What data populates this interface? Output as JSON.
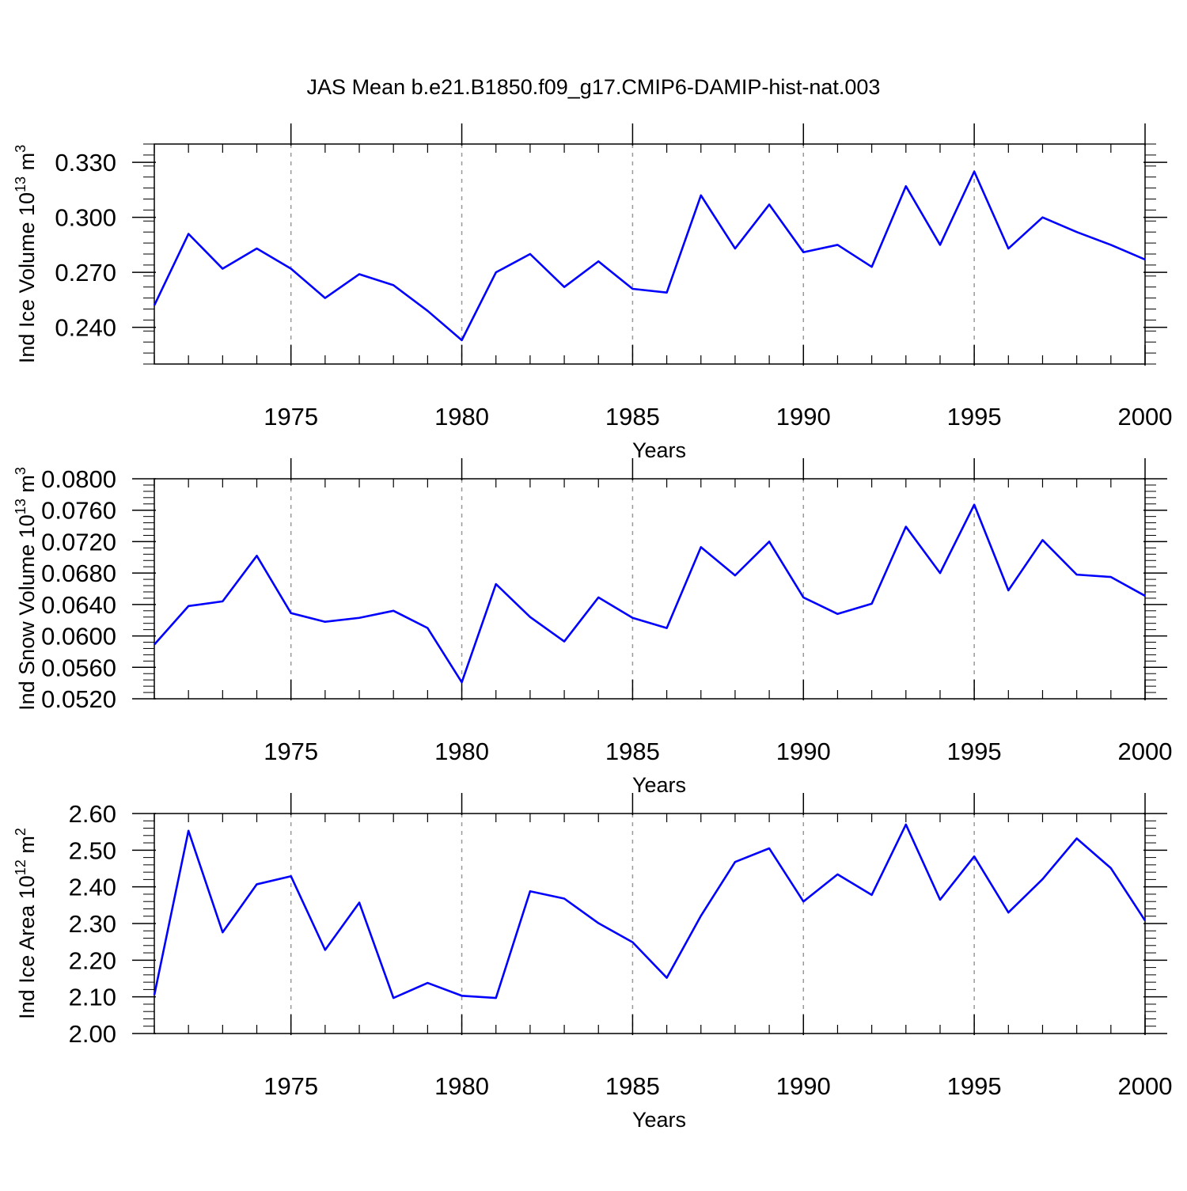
{
  "figure": {
    "title": "JAS Mean b.e21.B1850.f09_g17.CMIP6-DAMIP-hist-nat.003",
    "line_color": "#0000ff",
    "grid_color": "#999999"
  },
  "chart_data": [
    {
      "type": "line",
      "ylabel": {
        "text": "Ind Ice Volume 10",
        "sup": "13",
        "unit": " m",
        "unit_sup": "3"
      },
      "xlabel": "Years",
      "xlim": [
        1971,
        2000
      ],
      "ylim": [
        0.22,
        0.34
      ],
      "xticks": [
        1975,
        1980,
        1985,
        1990,
        1995,
        2000
      ],
      "yticks": [
        0.24,
        0.27,
        0.3,
        0.33
      ],
      "ytick_labels": [
        "0.240",
        "0.270",
        "0.300",
        "0.330"
      ],
      "grid": "vertical-dashed",
      "x": [
        1971,
        1972,
        1973,
        1974,
        1975,
        1976,
        1977,
        1978,
        1979,
        1980,
        1981,
        1982,
        1983,
        1984,
        1985,
        1986,
        1987,
        1988,
        1989,
        1990,
        1991,
        1992,
        1993,
        1994,
        1995,
        1996,
        1997,
        1998,
        1999,
        2000
      ],
      "values": [
        0.252,
        0.291,
        0.272,
        0.283,
        0.272,
        0.256,
        0.269,
        0.263,
        0.249,
        0.233,
        0.27,
        0.28,
        0.262,
        0.276,
        0.261,
        0.259,
        0.312,
        0.283,
        0.307,
        0.281,
        0.285,
        0.273,
        0.317,
        0.285,
        0.325,
        0.283,
        0.3,
        0.292,
        0.285,
        0.277
      ]
    },
    {
      "type": "line",
      "ylabel": {
        "text": "Ind Snow Volume 10",
        "sup": "13",
        "unit": " m",
        "unit_sup": "3"
      },
      "xlabel": "Years",
      "xlim": [
        1971,
        2000
      ],
      "ylim": [
        0.052,
        0.08
      ],
      "xticks": [
        1975,
        1980,
        1985,
        1990,
        1995,
        2000
      ],
      "yticks": [
        0.052,
        0.056,
        0.06,
        0.064,
        0.068,
        0.072,
        0.076,
        0.08
      ],
      "ytick_labels": [
        "0.0520",
        "0.0560",
        "0.0600",
        "0.0640",
        "0.0680",
        "0.0720",
        "0.0760",
        "0.0800"
      ],
      "grid": "vertical-dashed",
      "x": [
        1971,
        1972,
        1973,
        1974,
        1975,
        1976,
        1977,
        1978,
        1979,
        1980,
        1981,
        1982,
        1983,
        1984,
        1985,
        1986,
        1987,
        1988,
        1989,
        1990,
        1991,
        1992,
        1993,
        1994,
        1995,
        1996,
        1997,
        1998,
        1999,
        2000
      ],
      "values": [
        0.0589,
        0.0638,
        0.0644,
        0.0702,
        0.0629,
        0.0618,
        0.0623,
        0.0632,
        0.061,
        0.0541,
        0.0666,
        0.0624,
        0.0593,
        0.0649,
        0.0623,
        0.061,
        0.0713,
        0.0677,
        0.072,
        0.0649,
        0.0628,
        0.0641,
        0.0739,
        0.068,
        0.0767,
        0.0658,
        0.0722,
        0.0678,
        0.0675,
        0.0651
      ]
    },
    {
      "type": "line",
      "ylabel": {
        "text": "Ind Ice Area 10",
        "sup": "12",
        "unit": " m",
        "unit_sup": "2"
      },
      "xlabel": "Years",
      "xlim": [
        1971,
        2000
      ],
      "ylim": [
        2.0,
        2.6
      ],
      "xticks": [
        1975,
        1980,
        1985,
        1990,
        1995,
        2000
      ],
      "yticks": [
        2.0,
        2.1,
        2.2,
        2.3,
        2.4,
        2.5,
        2.6
      ],
      "ytick_labels": [
        "2.00",
        "2.10",
        "2.20",
        "2.30",
        "2.40",
        "2.50",
        "2.60"
      ],
      "grid": "vertical-dashed",
      "x": [
        1971,
        1972,
        1973,
        1974,
        1975,
        1976,
        1977,
        1978,
        1979,
        1980,
        1981,
        1982,
        1983,
        1984,
        1985,
        1986,
        1987,
        1988,
        1989,
        1990,
        1991,
        1992,
        1993,
        1994,
        1995,
        1996,
        1997,
        1998,
        1999,
        2000
      ],
      "values": [
        2.105,
        2.553,
        2.276,
        2.407,
        2.429,
        2.228,
        2.357,
        2.097,
        2.138,
        2.103,
        2.097,
        2.388,
        2.368,
        2.301,
        2.249,
        2.152,
        2.321,
        2.468,
        2.505,
        2.36,
        2.434,
        2.378,
        2.57,
        2.365,
        2.483,
        2.33,
        2.421,
        2.532,
        2.451,
        2.308
      ]
    }
  ]
}
